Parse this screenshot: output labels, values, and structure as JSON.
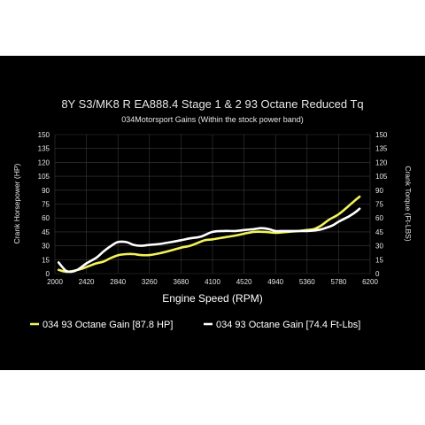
{
  "chart_data": {
    "type": "line",
    "title": "8Y S3/MK8 R EA888.4 Stage 1 & 2 93 Octane Reduced Tq",
    "subtitle": "034Motorsport Gains (Within the stock power band)",
    "xlabel": "Engine Speed (RPM)",
    "ylabel_left": "Crank Horsepower (HP)",
    "ylabel_right": "Crank Torque (Ft-LBS)",
    "xlim": [
      2000,
      6200
    ],
    "ylim": [
      0,
      150
    ],
    "xticks": [
      "2000",
      "2420",
      "2840",
      "3260",
      "3680",
      "4100",
      "4520",
      "4940",
      "5360",
      "5780",
      "6200"
    ],
    "yticks": [
      "0",
      "15",
      "30",
      "45",
      "60",
      "75",
      "90",
      "105",
      "120",
      "135",
      "150"
    ],
    "grid": true,
    "legend_position": "bottom",
    "series": [
      {
        "name": "034 93 Octane Gain [87.8 HP]",
        "color": "#f2f25a",
        "axis": "left",
        "points": [
          [
            2050,
            4
          ],
          [
            2150,
            2
          ],
          [
            2250,
            3
          ],
          [
            2350,
            5
          ],
          [
            2450,
            8
          ],
          [
            2550,
            11
          ],
          [
            2650,
            13
          ],
          [
            2750,
            17
          ],
          [
            2850,
            20
          ],
          [
            2950,
            21
          ],
          [
            3050,
            21
          ],
          [
            3150,
            20
          ],
          [
            3260,
            20
          ],
          [
            3400,
            22
          ],
          [
            3550,
            25
          ],
          [
            3680,
            28
          ],
          [
            3800,
            30
          ],
          [
            3900,
            33
          ],
          [
            4000,
            36
          ],
          [
            4100,
            37
          ],
          [
            4250,
            39
          ],
          [
            4400,
            41
          ],
          [
            4520,
            43
          ],
          [
            4650,
            45
          ],
          [
            4800,
            45
          ],
          [
            4940,
            44
          ],
          [
            5100,
            45
          ],
          [
            5250,
            46
          ],
          [
            5360,
            47
          ],
          [
            5450,
            48
          ],
          [
            5550,
            52
          ],
          [
            5650,
            58
          ],
          [
            5780,
            64
          ],
          [
            5900,
            72
          ],
          [
            6000,
            79
          ],
          [
            6060,
            83
          ]
        ]
      },
      {
        "name": "034 93 Octane Gain [74.4 Ft-Lbs]",
        "color": "#ffffff",
        "axis": "right",
        "points": [
          [
            2050,
            12
          ],
          [
            2100,
            7
          ],
          [
            2150,
            3
          ],
          [
            2220,
            2
          ],
          [
            2300,
            4
          ],
          [
            2420,
            11
          ],
          [
            2550,
            17
          ],
          [
            2650,
            24
          ],
          [
            2750,
            30
          ],
          [
            2840,
            34
          ],
          [
            2950,
            34
          ],
          [
            3050,
            31
          ],
          [
            3150,
            30
          ],
          [
            3260,
            31
          ],
          [
            3400,
            32
          ],
          [
            3550,
            34
          ],
          [
            3680,
            36
          ],
          [
            3800,
            38
          ],
          [
            3950,
            40
          ],
          [
            4100,
            45
          ],
          [
            4250,
            46
          ],
          [
            4400,
            46
          ],
          [
            4520,
            47
          ],
          [
            4650,
            48
          ],
          [
            4750,
            49
          ],
          [
            4850,
            48
          ],
          [
            4940,
            46
          ],
          [
            5050,
            46
          ],
          [
            5150,
            46
          ],
          [
            5250,
            46
          ],
          [
            5360,
            46
          ],
          [
            5500,
            47
          ],
          [
            5600,
            49
          ],
          [
            5700,
            52
          ],
          [
            5780,
            56
          ],
          [
            5900,
            61
          ],
          [
            6000,
            66
          ],
          [
            6060,
            70
          ]
        ]
      }
    ]
  },
  "colors": {
    "background": "#000000",
    "grid": "#3a3a3a",
    "text": "#e6e6e6"
  }
}
